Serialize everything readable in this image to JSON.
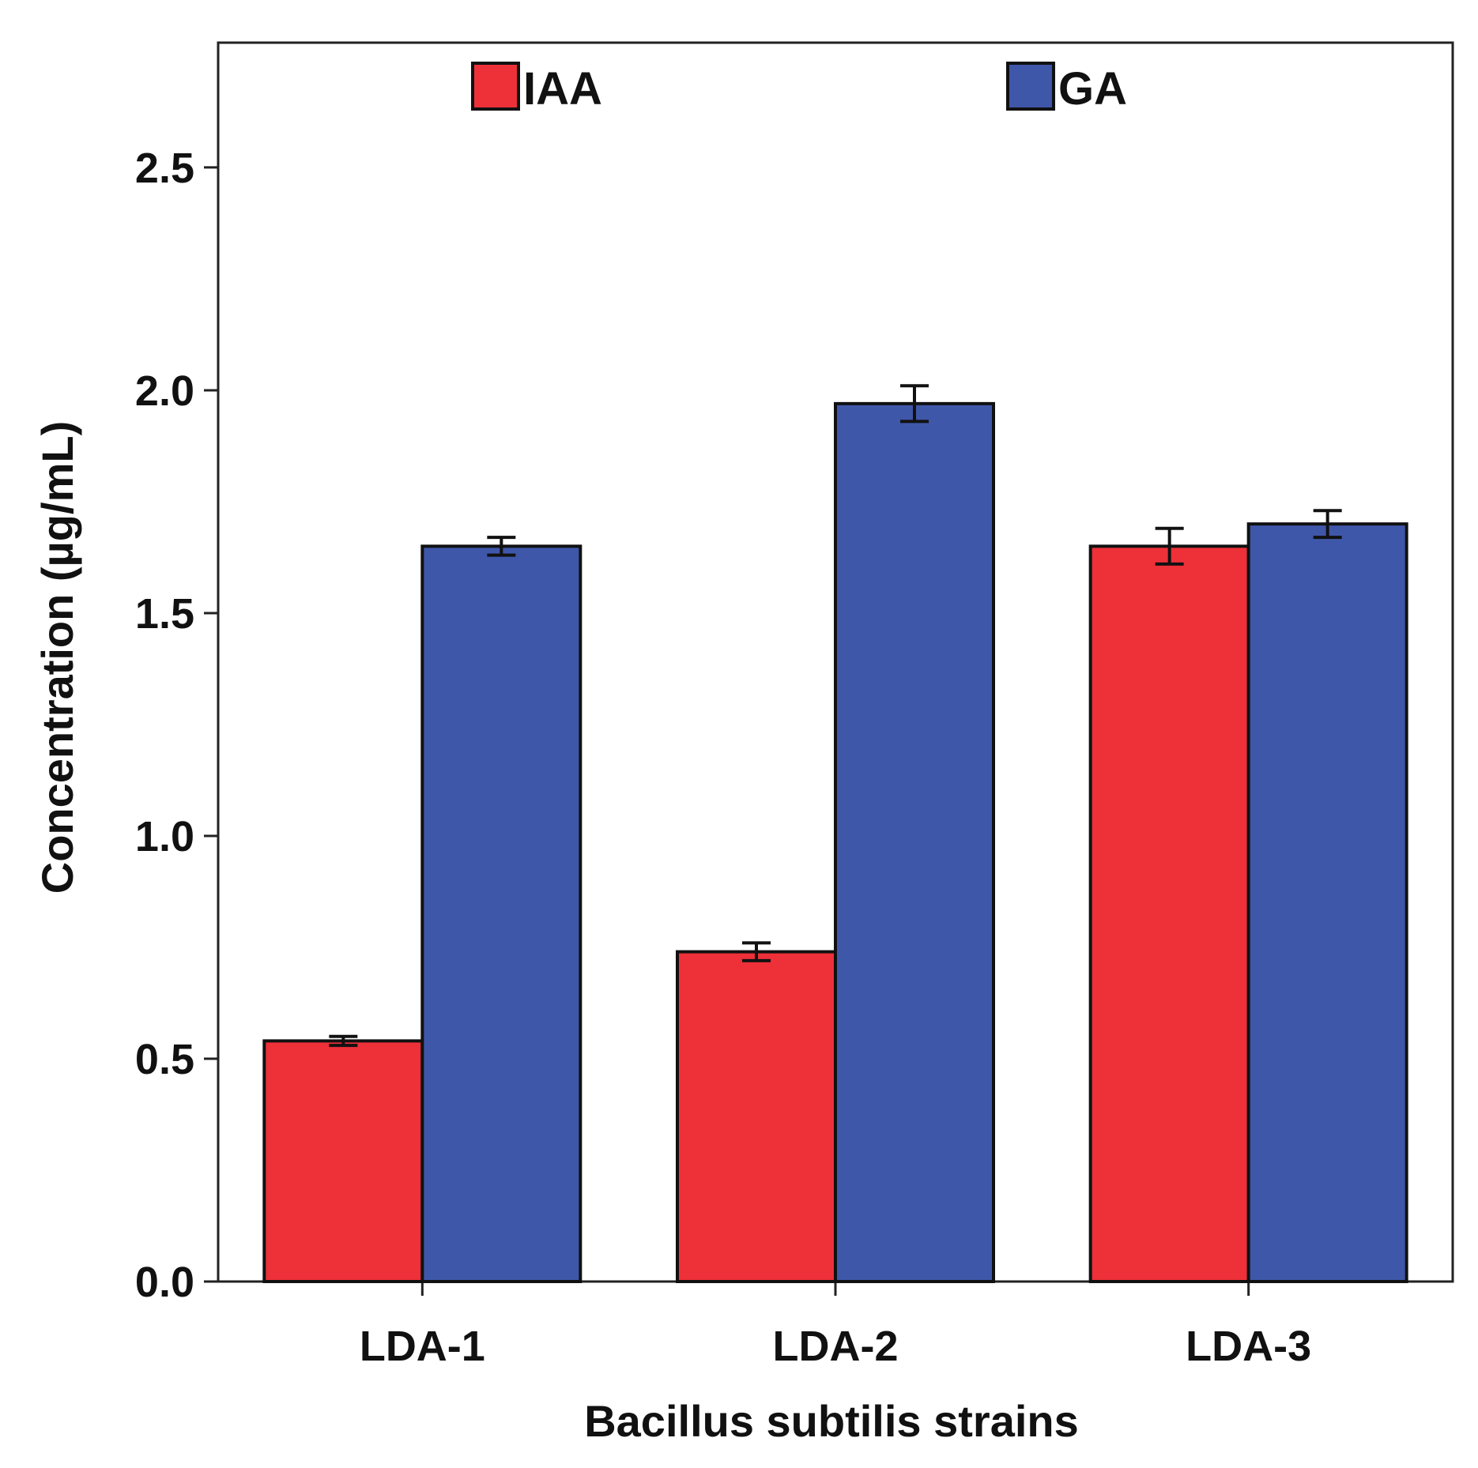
{
  "chart_data": {
    "type": "bar",
    "title": "",
    "xlabel": "Bacillus subtilis strains",
    "ylabel": "Concentration (µg/mL)",
    "categories": [
      "LDA-1",
      "LDA-2",
      "LDA-3"
    ],
    "ylim": [
      0,
      2.78
    ],
    "yticks": [
      0.0,
      0.5,
      1.0,
      1.5,
      2.0,
      2.5
    ],
    "ytick_labels": [
      "0.0",
      "0.5",
      "1.0",
      "1.5",
      "2.0",
      "2.5"
    ],
    "grid": false,
    "legend_position": "top",
    "error_bars": true,
    "series": [
      {
        "name": "IAA",
        "color": "#ee3039",
        "values": [
          0.54,
          0.74,
          1.65
        ],
        "errors": [
          0.01,
          0.02,
          0.04
        ]
      },
      {
        "name": "GA",
        "color": "#3f57a9",
        "values": [
          1.65,
          1.97,
          1.7
        ],
        "errors": [
          0.02,
          0.04,
          0.03
        ]
      }
    ]
  }
}
